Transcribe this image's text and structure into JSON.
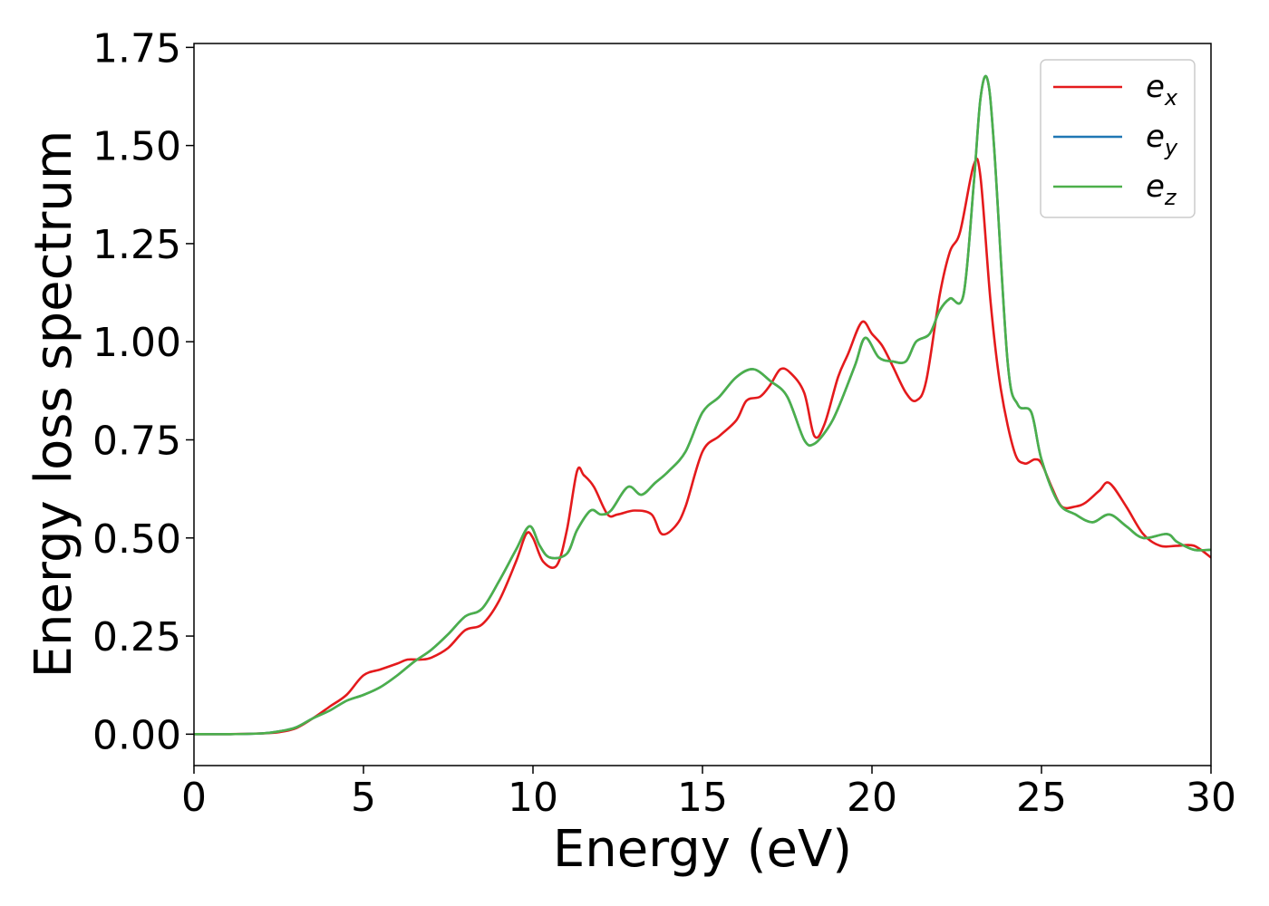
{
  "chart_data": {
    "type": "line",
    "title": "",
    "xlabel": "Energy (eV)",
    "ylabel": "Energy loss spectrum",
    "xlim": [
      0,
      30
    ],
    "ylim": [
      -0.08,
      1.76
    ],
    "xticks": [
      0,
      5,
      10,
      15,
      20,
      25,
      30
    ],
    "xtick_labels": [
      "0",
      "5",
      "10",
      "15",
      "20",
      "25",
      "30"
    ],
    "yticks": [
      0,
      0.25,
      0.5,
      0.75,
      1.0,
      1.25,
      1.5,
      1.75
    ],
    "ytick_labels": [
      "0.00",
      "0.25",
      "0.50",
      "0.75",
      "1.00",
      "1.25",
      "1.50",
      "1.75"
    ],
    "grid": false,
    "legend_position": "top-right",
    "series": [
      {
        "name": "e_x",
        "label_base": "e",
        "label_sub": "x",
        "color": "#e41a1c",
        "x": [
          0,
          1,
          2,
          2.5,
          3,
          3.5,
          4,
          4.5,
          5,
          5.5,
          6,
          6.3,
          6.7,
          7,
          7.5,
          8,
          8.5,
          9,
          9.5,
          9.8,
          10,
          10.3,
          10.7,
          11,
          11.3,
          11.5,
          11.8,
          12.2,
          12.5,
          13,
          13.5,
          13.8,
          14.2,
          14.5,
          15,
          15.5,
          16,
          16.3,
          16.7,
          17,
          17.3,
          17.6,
          18,
          18.3,
          18.6,
          19,
          19.3,
          19.7,
          20,
          20.3,
          20.6,
          21,
          21.3,
          21.6,
          22,
          22.3,
          22.6,
          23,
          23.2,
          23.5,
          23.8,
          24.2,
          24.5,
          24.8,
          25,
          25.3,
          25.6,
          26,
          26.3,
          26.7,
          27,
          27.5,
          28,
          28.5,
          29,
          29.5,
          30
        ],
        "y": [
          0.0,
          0.0,
          0.002,
          0.005,
          0.015,
          0.04,
          0.07,
          0.1,
          0.15,
          0.165,
          0.18,
          0.19,
          0.19,
          0.195,
          0.22,
          0.265,
          0.28,
          0.34,
          0.44,
          0.51,
          0.5,
          0.44,
          0.43,
          0.52,
          0.67,
          0.66,
          0.63,
          0.56,
          0.56,
          0.57,
          0.56,
          0.51,
          0.53,
          0.58,
          0.72,
          0.76,
          0.8,
          0.85,
          0.86,
          0.89,
          0.93,
          0.92,
          0.87,
          0.76,
          0.79,
          0.91,
          0.97,
          1.05,
          1.02,
          0.99,
          0.94,
          0.87,
          0.85,
          0.9,
          1.12,
          1.23,
          1.28,
          1.45,
          1.42,
          1.1,
          0.88,
          0.72,
          0.69,
          0.7,
          0.69,
          0.63,
          0.58,
          0.58,
          0.59,
          0.62,
          0.64,
          0.58,
          0.51,
          0.48,
          0.48,
          0.48,
          0.45
        ]
      },
      {
        "name": "e_y",
        "label_base": "e",
        "label_sub": "y",
        "color": "#1f77b4",
        "x": [
          0,
          1,
          2,
          2.5,
          3,
          3.5,
          4,
          4.5,
          5,
          5.5,
          6,
          6.5,
          7,
          7.5,
          8,
          8.5,
          9,
          9.5,
          9.9,
          10.2,
          10.5,
          11,
          11.3,
          11.7,
          12,
          12.3,
          12.8,
          13.2,
          13.6,
          14,
          14.5,
          15,
          15.5,
          16,
          16.5,
          17,
          17.5,
          18,
          18.3,
          18.7,
          19,
          19.5,
          19.8,
          20.2,
          20.6,
          21,
          21.3,
          21.7,
          22,
          22.3,
          22.7,
          23,
          23.2,
          23.4,
          23.6,
          24,
          24.3,
          24.7,
          25,
          25.5,
          26,
          26.5,
          27,
          27.5,
          28,
          28.7,
          29,
          29.5,
          30
        ],
        "y": [
          0.0,
          0.0,
          0.002,
          0.007,
          0.017,
          0.04,
          0.06,
          0.085,
          0.1,
          0.12,
          0.15,
          0.185,
          0.215,
          0.255,
          0.3,
          0.32,
          0.39,
          0.47,
          0.53,
          0.48,
          0.45,
          0.46,
          0.52,
          0.57,
          0.56,
          0.57,
          0.63,
          0.61,
          0.64,
          0.67,
          0.72,
          0.82,
          0.86,
          0.91,
          0.93,
          0.9,
          0.86,
          0.75,
          0.74,
          0.78,
          0.83,
          0.94,
          1.01,
          0.96,
          0.95,
          0.95,
          1.0,
          1.02,
          1.08,
          1.11,
          1.12,
          1.4,
          1.62,
          1.67,
          1.5,
          0.95,
          0.84,
          0.82,
          0.7,
          0.59,
          0.56,
          0.54,
          0.56,
          0.53,
          0.5,
          0.51,
          0.49,
          0.47,
          0.47
        ]
      },
      {
        "name": "e_z",
        "label_base": "e",
        "label_sub": "z",
        "color": "#4daf4a",
        "x": [
          0,
          1,
          2,
          2.5,
          3,
          3.5,
          4,
          4.5,
          5,
          5.5,
          6,
          6.5,
          7,
          7.5,
          8,
          8.5,
          9,
          9.5,
          9.9,
          10.2,
          10.5,
          11,
          11.3,
          11.7,
          12,
          12.3,
          12.8,
          13.2,
          13.6,
          14,
          14.5,
          15,
          15.5,
          16,
          16.5,
          17,
          17.5,
          18,
          18.3,
          18.7,
          19,
          19.5,
          19.8,
          20.2,
          20.6,
          21,
          21.3,
          21.7,
          22,
          22.3,
          22.7,
          23,
          23.2,
          23.4,
          23.6,
          24,
          24.3,
          24.7,
          25,
          25.5,
          26,
          26.5,
          27,
          27.5,
          28,
          28.7,
          29,
          29.5,
          30
        ],
        "y": [
          0.0,
          0.0,
          0.002,
          0.007,
          0.017,
          0.04,
          0.06,
          0.085,
          0.1,
          0.12,
          0.15,
          0.185,
          0.215,
          0.255,
          0.3,
          0.32,
          0.39,
          0.47,
          0.53,
          0.48,
          0.45,
          0.46,
          0.52,
          0.57,
          0.56,
          0.57,
          0.63,
          0.61,
          0.64,
          0.67,
          0.72,
          0.82,
          0.86,
          0.91,
          0.93,
          0.9,
          0.86,
          0.75,
          0.74,
          0.78,
          0.83,
          0.94,
          1.01,
          0.96,
          0.95,
          0.95,
          1.0,
          1.02,
          1.08,
          1.11,
          1.12,
          1.4,
          1.62,
          1.67,
          1.5,
          0.95,
          0.84,
          0.82,
          0.7,
          0.59,
          0.56,
          0.54,
          0.56,
          0.53,
          0.5,
          0.51,
          0.49,
          0.47,
          0.47
        ]
      }
    ]
  }
}
